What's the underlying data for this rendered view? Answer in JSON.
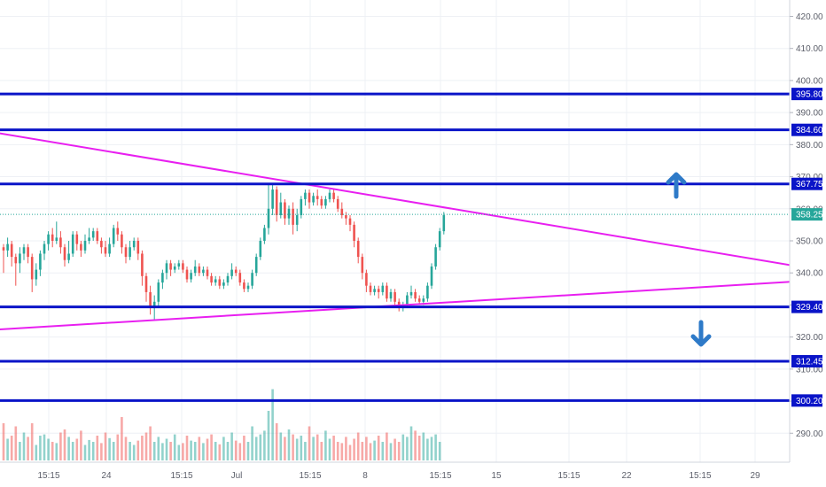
{
  "chart_data": {
    "type": "candlestick",
    "x_tick_labels": [
      "15:15",
      "24",
      "15:15",
      "Jul",
      "15:15",
      "8",
      "15:15",
      "15",
      "15:15",
      "22",
      "15:15",
      "29"
    ],
    "y_tick_labels": [
      "290.00",
      "300.00",
      "310.00",
      "320.00",
      "330.00",
      "340.00",
      "350.00",
      "360.00",
      "370.00",
      "380.00",
      "390.00",
      "400.00",
      "410.00",
      "420.00"
    ],
    "y_ticks": [
      290,
      300,
      310,
      320,
      330,
      340,
      350,
      360,
      370,
      380,
      390,
      400,
      410,
      420
    ],
    "ylim": [
      284,
      424
    ],
    "last_price": 358.25,
    "last_price_label": "358.25",
    "horizontal_levels": [
      {
        "value": 395.8,
        "label": "395.80"
      },
      {
        "value": 384.6,
        "label": "384.60"
      },
      {
        "value": 367.75,
        "label": "367.75"
      },
      {
        "value": 329.4,
        "label": "329.40"
      },
      {
        "value": 312.45,
        "label": "312.45"
      },
      {
        "value": 300.2,
        "label": "300.20"
      }
    ],
    "trendlines": [
      {
        "from_bar": -6,
        "from_value": 384.6,
        "to_bar": 211,
        "to_value": 338.6
      },
      {
        "from_bar": -6,
        "from_value": 322.0,
        "to_bar": 211,
        "to_value": 338.6
      }
    ],
    "bars": [
      [
        348,
        347,
        349,
        340
      ],
      [
        347,
        349,
        351,
        345
      ],
      [
        349,
        345,
        350,
        342
      ],
      [
        345,
        343,
        346,
        336
      ],
      [
        343,
        346,
        348,
        340
      ],
      [
        346,
        348,
        349,
        344
      ],
      [
        348,
        345,
        349,
        343
      ],
      [
        345,
        338,
        346,
        334
      ],
      [
        338,
        341,
        343,
        336
      ],
      [
        341,
        346,
        347,
        339
      ],
      [
        346,
        349,
        350,
        344
      ],
      [
        349,
        352,
        353,
        347
      ],
      [
        352,
        350,
        354,
        348
      ],
      [
        350,
        351,
        356,
        349
      ],
      [
        351,
        348,
        353,
        346
      ],
      [
        348,
        344,
        349,
        342
      ],
      [
        344,
        346,
        350,
        343
      ],
      [
        346,
        352,
        353,
        345
      ],
      [
        352,
        349,
        353,
        347
      ],
      [
        349,
        347,
        350,
        345
      ],
      [
        347,
        350,
        352,
        346
      ],
      [
        350,
        351,
        354,
        349
      ],
      [
        351,
        353,
        354,
        350
      ],
      [
        353,
        350,
        354,
        349
      ],
      [
        350,
        348,
        351,
        346
      ],
      [
        348,
        346,
        350,
        345
      ],
      [
        346,
        349,
        351,
        345
      ],
      [
        349,
        354,
        355,
        348
      ],
      [
        354,
        352,
        356,
        350
      ],
      [
        352,
        348,
        353,
        346
      ],
      [
        348,
        345,
        349,
        343
      ],
      [
        345,
        348,
        350,
        344
      ],
      [
        348,
        350,
        351,
        347
      ],
      [
        350,
        346,
        351,
        344
      ],
      [
        346,
        339,
        347,
        336
      ],
      [
        339,
        334,
        340,
        331
      ],
      [
        334,
        329,
        336,
        327
      ],
      [
        329,
        331,
        333,
        325
      ],
      [
        331,
        337,
        338,
        329
      ],
      [
        337,
        340,
        341,
        335
      ],
      [
        340,
        343,
        344,
        338
      ],
      [
        343,
        341,
        344,
        339
      ],
      [
        341,
        342,
        343,
        340
      ],
      [
        342,
        343,
        344,
        341
      ],
      [
        343,
        341,
        344,
        340
      ],
      [
        341,
        338,
        342,
        337
      ],
      [
        338,
        340,
        341,
        337
      ],
      [
        340,
        342,
        344,
        339
      ],
      [
        342,
        340,
        343,
        339
      ],
      [
        340,
        341,
        342,
        339
      ],
      [
        341,
        339,
        342,
        338
      ],
      [
        339,
        337,
        340,
        336
      ],
      [
        337,
        338,
        339,
        336
      ],
      [
        338,
        336,
        339,
        335
      ],
      [
        336,
        337,
        338,
        335
      ],
      [
        337,
        339,
        340,
        336
      ],
      [
        339,
        341,
        343,
        338
      ],
      [
        341,
        340,
        342,
        339
      ],
      [
        340,
        337,
        341,
        336
      ],
      [
        337,
        335,
        338,
        334
      ],
      [
        335,
        336,
        337,
        334
      ],
      [
        336,
        340,
        341,
        335
      ],
      [
        340,
        345,
        346,
        339
      ],
      [
        345,
        350,
        351,
        344
      ],
      [
        350,
        354,
        355,
        349
      ],
      [
        354,
        360,
        368,
        352
      ],
      [
        360,
        366,
        368,
        358
      ],
      [
        366,
        358,
        367,
        356
      ],
      [
        358,
        362,
        365,
        357
      ],
      [
        362,
        357,
        363,
        355
      ],
      [
        357,
        360,
        361,
        355
      ],
      [
        360,
        355,
        362,
        352
      ],
      [
        355,
        358,
        360,
        353
      ],
      [
        358,
        363,
        364,
        357
      ],
      [
        363,
        365,
        366,
        361
      ],
      [
        365,
        362,
        366,
        360
      ],
      [
        362,
        364,
        365,
        361
      ],
      [
        364,
        363,
        366,
        361
      ],
      [
        363,
        361,
        364,
        360
      ],
      [
        361,
        363,
        364,
        360
      ],
      [
        363,
        365,
        366,
        362
      ],
      [
        365,
        363,
        366,
        362
      ],
      [
        363,
        360,
        364,
        359
      ],
      [
        360,
        358,
        362,
        357
      ],
      [
        358,
        357,
        359,
        355
      ],
      [
        357,
        355,
        358,
        353
      ],
      [
        355,
        350,
        356,
        348
      ],
      [
        350,
        345,
        351,
        343
      ],
      [
        345,
        340,
        346,
        338
      ],
      [
        340,
        336,
        341,
        334
      ],
      [
        336,
        334,
        337,
        333
      ],
      [
        334,
        335,
        336,
        333
      ],
      [
        335,
        334,
        336,
        332
      ],
      [
        334,
        336,
        337,
        333
      ],
      [
        336,
        332,
        337,
        331
      ],
      [
        332,
        334,
        335,
        331
      ],
      [
        334,
        331,
        335,
        330
      ],
      [
        331,
        329,
        332,
        328
      ],
      [
        329,
        330,
        331,
        328
      ],
      [
        330,
        333,
        334,
        329
      ],
      [
        333,
        334,
        336,
        332
      ],
      [
        334,
        332,
        335,
        331
      ],
      [
        332,
        331,
        333,
        330
      ],
      [
        331,
        332,
        333,
        330
      ],
      [
        332,
        336,
        337,
        331
      ],
      [
        336,
        342,
        343,
        335
      ],
      [
        342,
        348,
        349,
        341
      ],
      [
        348,
        353,
        354,
        347
      ],
      [
        353,
        358,
        359,
        352
      ]
    ],
    "volumes": [
      60,
      35,
      40,
      55,
      30,
      45,
      38,
      60,
      25,
      40,
      42,
      35,
      30,
      28,
      45,
      50,
      38,
      30,
      35,
      48,
      25,
      33,
      30,
      40,
      28,
      45,
      36,
      30,
      42,
      70,
      38,
      30,
      25,
      32,
      40,
      45,
      55,
      30,
      38,
      28,
      35,
      30,
      42,
      25,
      28,
      40,
      32,
      30,
      38,
      28,
      35,
      42,
      30,
      26,
      38,
      30,
      45,
      32,
      28,
      40,
      30,
      55,
      38,
      42,
      48,
      80,
      115,
      60,
      45,
      38,
      50,
      42,
      35,
      40,
      30,
      55,
      38,
      42,
      30,
      48,
      35,
      40,
      30,
      28,
      38,
      25,
      35,
      45,
      30,
      38,
      28,
      32,
      40,
      30,
      45,
      28,
      35,
      30,
      42,
      38,
      55,
      48,
      40,
      45,
      35,
      38,
      42,
      30
    ],
    "ohlc_order": [
      "open",
      "close",
      "high",
      "low"
    ],
    "colors": {
      "up": "#26a69a",
      "down": "#ef5350",
      "level": "#0a14c8",
      "trendline": "#e81ff0",
      "arrow": "#2e7ac8",
      "grid": "#eef0f5",
      "axis_text": "#5d606b"
    },
    "annotations": [
      {
        "type": "arrow",
        "direction": "up",
        "icon": "arrow-up-icon"
      },
      {
        "type": "arrow",
        "direction": "down",
        "icon": "arrow-down-icon"
      }
    ]
  }
}
